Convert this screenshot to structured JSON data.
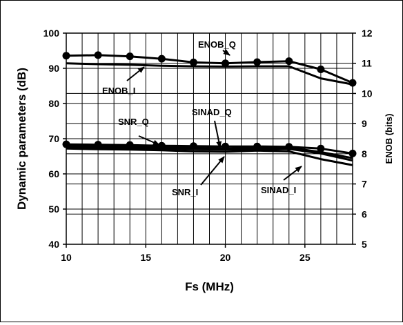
{
  "chart_data": {
    "type": "line",
    "xlabel": "Fs (MHz)",
    "ylabel": "Dynamic parameters (dB)",
    "y2label": "ENOB (bits)",
    "xlim": [
      10,
      28
    ],
    "ylim": [
      40,
      100
    ],
    "y2lim": [
      5,
      12
    ],
    "xticks": [
      10,
      15,
      20,
      25
    ],
    "yticks": [
      40,
      50,
      60,
      70,
      80,
      90,
      100
    ],
    "y2ticks": [
      5,
      6,
      7,
      8,
      9,
      10,
      11,
      12
    ],
    "grid": true,
    "series": [
      {
        "name": "ENOB_Q",
        "axis": "right",
        "marker": true,
        "x": [
          10,
          12,
          14,
          16,
          18,
          20,
          22,
          24,
          26,
          28
        ],
        "y": [
          11.25,
          11.27,
          11.23,
          11.15,
          11.03,
          11.0,
          11.04,
          11.07,
          10.8,
          10.35
        ]
      },
      {
        "name": "ENOB_I",
        "axis": "right",
        "marker": false,
        "x": [
          10,
          12,
          14,
          16,
          18,
          20,
          22,
          24,
          26,
          28
        ],
        "y": [
          11.0,
          10.97,
          10.95,
          10.92,
          10.9,
          10.89,
          10.9,
          10.9,
          10.5,
          10.3
        ]
      },
      {
        "name": "SNR_Q",
        "axis": "left",
        "marker": true,
        "x": [
          10,
          12,
          14,
          16,
          18,
          20,
          22,
          24,
          26,
          28
        ],
        "y": [
          68.4,
          68.3,
          68.2,
          68.0,
          67.9,
          67.8,
          67.8,
          67.7,
          67.2,
          65.8
        ]
      },
      {
        "name": "SINAD_Q",
        "axis": "left",
        "marker": false,
        "x": [
          10,
          12,
          14,
          16,
          18,
          20,
          22,
          24,
          26,
          28
        ],
        "y": [
          68.0,
          67.9,
          67.8,
          67.6,
          67.4,
          67.2,
          67.4,
          67.5,
          66.2,
          64.5
        ]
      },
      {
        "name": "SNR_I",
        "axis": "left",
        "marker": false,
        "x": [
          10,
          12,
          14,
          16,
          18,
          20,
          22,
          24,
          26,
          28
        ],
        "y": [
          67.6,
          67.5,
          67.4,
          67.2,
          67.0,
          66.9,
          67.0,
          67.1,
          65.8,
          63.8
        ]
      },
      {
        "name": "SINAD_I",
        "axis": "left",
        "marker": false,
        "x": [
          10,
          12,
          14,
          16,
          18,
          20,
          22,
          24,
          26,
          28
        ],
        "y": [
          67.2,
          67.0,
          66.9,
          66.7,
          66.4,
          66.3,
          66.6,
          66.4,
          64.2,
          62.5
        ]
      }
    ],
    "annotations": [
      {
        "text": "ENOB_Q",
        "target_series": "ENOB_Q"
      },
      {
        "text": "ENOB_I",
        "target_series": "ENOB_I"
      },
      {
        "text": "SNR_Q",
        "target_series": "SNR_Q"
      },
      {
        "text": "SINAD_Q",
        "target_series": "SINAD_Q"
      },
      {
        "text": "SNR_I",
        "target_series": "SNR_I"
      },
      {
        "text": "SINAD_I",
        "target_series": "SINAD_I"
      }
    ]
  }
}
